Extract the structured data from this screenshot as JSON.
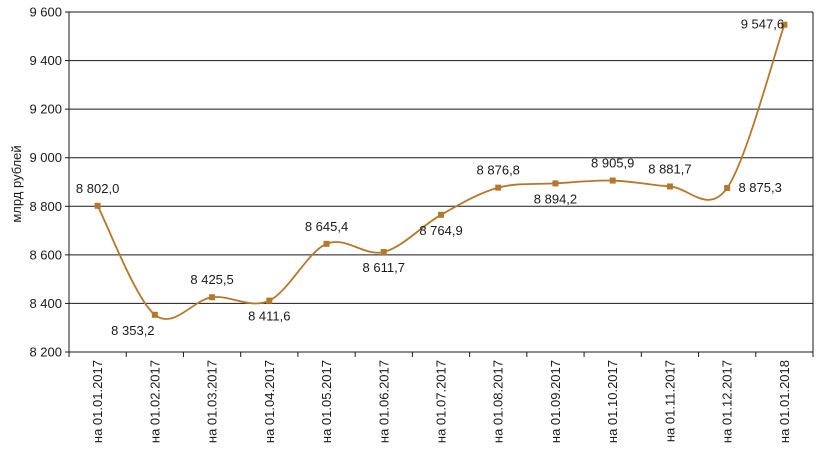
{
  "chart_data": {
    "type": "line",
    "ylabel": "млрд рублей",
    "ylim": [
      8200,
      9600
    ],
    "y_ticks": [
      8200,
      8400,
      8600,
      8800,
      9000,
      9200,
      9400,
      9600
    ],
    "y_tick_labels": [
      "8 200",
      "8 400",
      "8 600",
      "8 800",
      "9 000",
      "9 200",
      "9 400",
      "9 600"
    ],
    "grid": true,
    "smooth": true,
    "line_color": "#b5782a",
    "marker_color": "#b5782a",
    "categories": [
      "на 01.01.2017",
      "на 01.02.2017",
      "на 01.03.2017",
      "на 01.04.2017",
      "на 01.05.2017",
      "на 01.06.2017",
      "на 01.07.2017",
      "на 01.08.2017",
      "на 01.09.2017",
      "на 01.10.2017",
      "на 01.11.2017",
      "на 01.12.2017",
      "на 01.01.2018"
    ],
    "series": [
      {
        "values": [
          8802.0,
          8353.2,
          8425.5,
          8411.6,
          8645.4,
          8611.7,
          8764.9,
          8876.8,
          8894.2,
          8905.9,
          8881.7,
          8875.3,
          9547.6
        ],
        "data_labels": [
          "8 802,0",
          "8 353,2",
          "8 425,5",
          "8 411,6",
          "8 645,4",
          "8 611,7",
          "8 764,9",
          "8 876,8",
          "8 894,2",
          "8 905,9",
          "8 881,7",
          "8 875,3",
          "9 547,6"
        ]
      }
    ]
  }
}
